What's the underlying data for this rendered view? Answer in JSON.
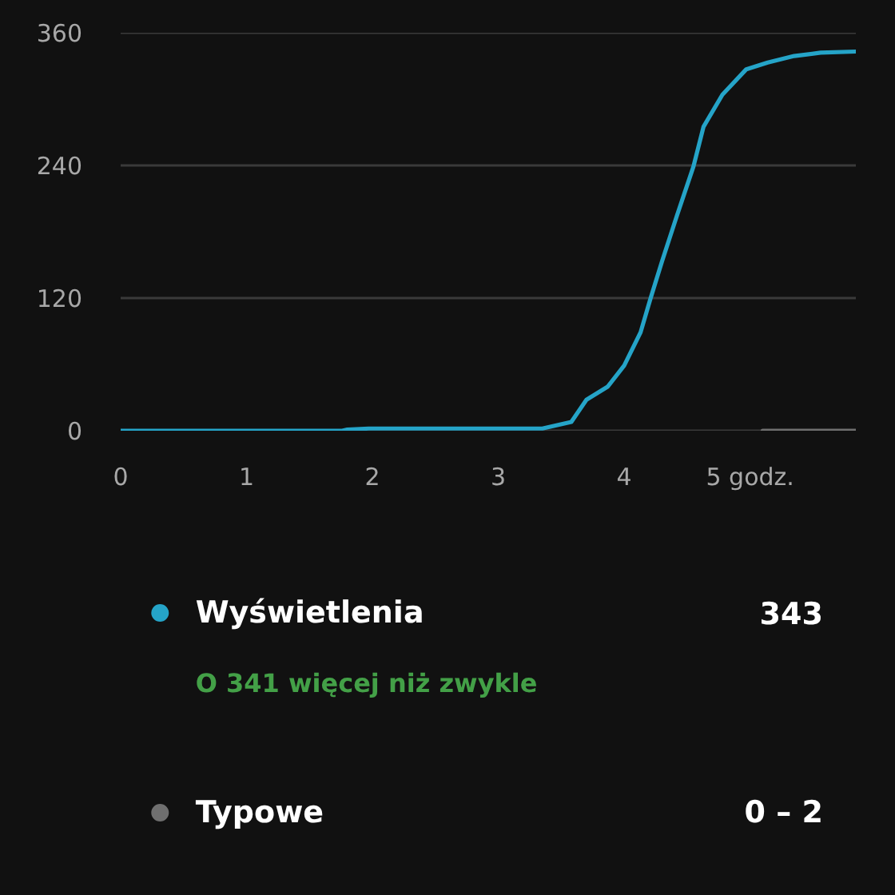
{
  "chart_data": {
    "type": "line",
    "xlim": [
      0,
      5.84
    ],
    "xticks": [
      0,
      1,
      2,
      3,
      4,
      {
        "value": 5,
        "label": "5 godz."
      }
    ],
    "ylim": [
      0,
      360
    ],
    "yticks": [
      0,
      120,
      240,
      360
    ],
    "grid": "y",
    "legend": "bottom",
    "line_style": "solid",
    "series": [
      {
        "name": "Wyświetlenia",
        "color": "#25a4c8",
        "x": [
          0,
          1.76,
          1.8,
          1.97,
          3.35,
          3.58,
          3.7,
          3.87,
          4.0,
          4.13,
          4.21,
          4.3,
          4.42,
          4.55,
          4.63,
          4.78,
          4.97,
          5.14,
          5.35,
          5.56,
          5.84
        ],
        "values": [
          0,
          0,
          1,
          2,
          2,
          8,
          28,
          40,
          59,
          89,
          120,
          153,
          195,
          239,
          275,
          304,
          327,
          333,
          339,
          342,
          343
        ]
      },
      {
        "name": "Typowe",
        "color": "#6f6f6f",
        "x": [
          5.1,
          5.84
        ],
        "values": [
          0,
          0
        ]
      }
    ],
    "annotations": [
      "343",
      "O 341 więcej niż zwykle",
      "0 – 2"
    ]
  }
}
